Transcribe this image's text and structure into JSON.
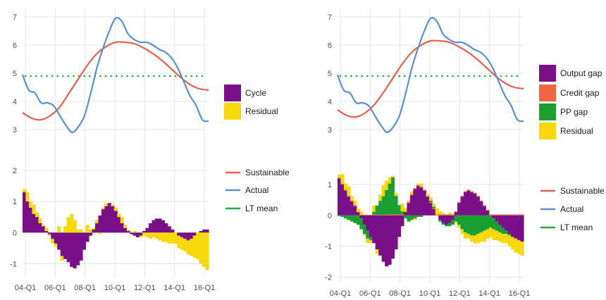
{
  "colors": {
    "cycle": "#7a0f8a",
    "output_gap": "#7a0f8a",
    "credit_gap": "#ee6644",
    "pp_gap": "#1aa032",
    "residual": "#f5d90a",
    "sustainable": "#e8604c",
    "actual": "#5b8fd1",
    "lt_mean": "#22aa44",
    "grid": "#e5e5e5"
  },
  "chart_data": [
    {
      "type": "line",
      "panel": "left",
      "x_labels": [
        "04-Q1",
        "06-Q1",
        "08-Q1",
        "10-Q1",
        "12-Q1",
        "14-Q1",
        "16-Q1"
      ],
      "top_ylim": [
        2.7,
        7.15
      ],
      "top_yticks": [
        "3",
        "4",
        "5",
        "6",
        "7"
      ],
      "bottom_ylim": [
        -1.35,
        2.2
      ],
      "bottom_yticks": [
        "-1",
        "0",
        "1",
        "2"
      ],
      "legend_top": [
        "Cycle",
        "Residual"
      ],
      "legend_bottom": [
        "Sustainable",
        "Actual",
        "LT mean"
      ],
      "lt_mean": 4.9,
      "actual": [
        4.95,
        4.4,
        4.3,
        3.95,
        3.95,
        3.85,
        3.5,
        3.15,
        2.9,
        3.1,
        3.5,
        4.3,
        5.2,
        5.9,
        6.5,
        6.95,
        6.85,
        6.4,
        6.2,
        6.1,
        6.1,
        6.0,
        5.85,
        5.75,
        5.55,
        5.2,
        4.7,
        4.2,
        3.85,
        3.35,
        3.3
      ],
      "sustainable": [
        3.6,
        3.4,
        3.35,
        3.5,
        3.8,
        4.3,
        4.8,
        5.3,
        5.7,
        5.95,
        6.1,
        6.1,
        6.05,
        5.9,
        5.7,
        5.45,
        5.15,
        4.85,
        4.6,
        4.45,
        4.4
      ],
      "cycle": [
        1.3,
        1.0,
        0.8,
        0.6,
        0.5,
        0.3,
        0.2,
        0.05,
        -0.05,
        -0.2,
        -0.35,
        -0.55,
        -0.75,
        -0.85,
        -0.95,
        -1.1,
        -1.15,
        -1.05,
        -0.9,
        -0.55,
        -0.3,
        -0.1,
        0.1,
        0.3,
        0.55,
        0.75,
        0.85,
        0.95,
        0.85,
        0.7,
        0.5,
        0.3,
        0.15,
        0.05,
        -0.05,
        -0.1,
        -0.15,
        -0.1,
        0.05,
        0.15,
        0.3,
        0.4,
        0.45,
        0.45,
        0.4,
        0.3,
        0.2,
        0.1,
        0.0,
        -0.1,
        -0.15,
        -0.2,
        -0.25,
        -0.2,
        -0.1,
        0.0,
        0.05,
        0.1,
        0.1
      ],
      "residual": [
        0.1,
        0.3,
        0.2,
        0.3,
        0.15,
        0.15,
        0.05,
        0.1,
        -0.05,
        -0.15,
        -0.1,
        0.2,
        -0.15,
        0.2,
        0.5,
        0.6,
        0.4,
        0.1,
        0.1,
        0.0,
        0.25,
        0.1,
        0.05,
        0.1,
        -0.05,
        0.05,
        0.1,
        0.0,
        0.05,
        0.1,
        0.1,
        0.2,
        0.1,
        0.05,
        0.0,
        0.05,
        0.0,
        -0.05,
        -0.1,
        -0.15,
        -0.2,
        -0.15,
        -0.2,
        -0.25,
        -0.3,
        -0.3,
        -0.35,
        -0.35,
        -0.35,
        -0.4,
        -0.4,
        -0.4,
        -0.45,
        -0.55,
        -0.7,
        -0.85,
        -1.0,
        -1.1,
        -1.2
      ]
    },
    {
      "type": "line",
      "panel": "right",
      "x_labels": [
        "04-Q1",
        "06-Q1",
        "08-Q1",
        "10-Q1",
        "12-Q1",
        "14-Q1",
        "16-Q1"
      ],
      "top_ylim": [
        2.7,
        7.15
      ],
      "top_yticks": [
        "3",
        "4",
        "5",
        "6",
        "7"
      ],
      "bottom_ylim": [
        -2.1,
        1.5
      ],
      "bottom_yticks": [
        "-2",
        "-1",
        "0",
        "1"
      ],
      "legend_top": [
        "Output gap",
        "Credit gap",
        "PP gap",
        "Residual"
      ],
      "legend_bottom": [
        "Sustainable",
        "Actual",
        "LT mean"
      ],
      "lt_mean": 4.9,
      "actual": [
        4.95,
        4.4,
        4.3,
        3.95,
        3.95,
        3.85,
        3.5,
        3.15,
        2.9,
        3.1,
        3.5,
        4.3,
        5.2,
        5.9,
        6.5,
        6.95,
        6.85,
        6.4,
        6.2,
        6.1,
        6.1,
        6.0,
        5.85,
        5.75,
        5.55,
        5.2,
        4.7,
        4.2,
        3.85,
        3.35,
        3.3
      ],
      "sustainable": [
        3.7,
        3.5,
        3.45,
        3.6,
        3.9,
        4.35,
        4.85,
        5.35,
        5.75,
        6.0,
        6.15,
        6.15,
        6.1,
        5.95,
        5.75,
        5.5,
        5.2,
        4.9,
        4.65,
        4.5,
        4.45
      ],
      "output_gap": [
        1.2,
        1.0,
        0.8,
        0.6,
        0.45,
        0.3,
        0.1,
        -0.1,
        -0.3,
        -0.5,
        -0.7,
        -0.9,
        -1.1,
        -1.3,
        -1.5,
        -1.65,
        -1.6,
        -1.4,
        -1.1,
        -0.7,
        -0.35,
        0.1,
        0.4,
        0.65,
        0.85,
        0.95,
        0.9,
        0.8,
        0.6,
        0.4,
        0.2,
        0.0,
        -0.15,
        -0.25,
        -0.3,
        -0.25,
        -0.15,
        0.1,
        0.4,
        0.6,
        0.75,
        0.8,
        0.75,
        0.7,
        0.6,
        0.45,
        0.3,
        0.15,
        0.0,
        -0.1,
        -0.2,
        -0.3,
        -0.4,
        -0.5,
        -0.6,
        -0.7,
        -0.75,
        -0.8,
        -0.85
      ],
      "credit_gap": [
        0.02,
        0.03,
        0.03,
        0.04,
        0.03,
        0.03,
        0.02,
        0.02,
        0.02,
        0.02,
        0.02,
        0.02,
        0.02,
        0.02,
        0.02,
        0.02,
        0.03,
        0.03,
        0.03,
        0.03,
        0.03,
        0.03,
        0.03,
        0.03,
        0.03,
        0.03,
        0.03,
        0.03,
        0.03,
        0.03,
        0.03,
        0.03,
        0.03,
        0.03,
        0.03,
        0.03,
        0.03,
        0.03,
        0.03,
        0.03,
        0.03,
        0.03,
        0.03,
        0.03,
        0.03,
        0.03,
        0.03,
        0.03,
        0.03,
        0.03,
        0.03,
        0.03,
        0.03,
        0.03,
        0.03,
        0.03,
        0.03,
        0.03,
        0.03
      ],
      "pp_gap": [
        -0.02,
        -0.05,
        -0.1,
        -0.15,
        -0.2,
        -0.25,
        -0.3,
        -0.35,
        -0.3,
        -0.25,
        -0.1,
        0.1,
        0.3,
        0.45,
        0.6,
        0.8,
        1.0,
        1.2,
        0.6,
        0.3,
        0.1,
        -0.1,
        -0.2,
        -0.15,
        -0.1,
        -0.05,
        -0.05,
        0.0,
        0.0,
        0.05,
        0.05,
        0.0,
        -0.05,
        -0.05,
        -0.05,
        -0.1,
        -0.15,
        -0.2,
        -0.3,
        -0.45,
        -0.55,
        -0.6,
        -0.65,
        -0.65,
        -0.6,
        -0.55,
        -0.5,
        -0.45,
        -0.4,
        -0.35,
        -0.3,
        -0.25,
        -0.2,
        -0.1,
        -0.05,
        0.0,
        0.0,
        0.0,
        0.0
      ],
      "residual": [
        0.1,
        0.3,
        0.2,
        0.3,
        0.15,
        0.15,
        0.1,
        0.1,
        -0.05,
        -0.15,
        -0.1,
        0.2,
        -0.15,
        0.2,
        0.35,
        0.3,
        0.2,
        0.05,
        0.1,
        0.0,
        0.25,
        0.1,
        0.05,
        0.1,
        -0.05,
        0.05,
        0.1,
        0.0,
        0.05,
        0.1,
        0.1,
        0.2,
        0.1,
        0.05,
        0.0,
        0.05,
        0.0,
        -0.05,
        -0.1,
        -0.15,
        -0.2,
        -0.15,
        -0.2,
        -0.25,
        -0.3,
        -0.3,
        -0.35,
        -0.3,
        -0.3,
        -0.35,
        -0.3,
        -0.3,
        -0.3,
        -0.3,
        -0.35,
        -0.4,
        -0.45,
        -0.45,
        -0.45
      ]
    }
  ]
}
